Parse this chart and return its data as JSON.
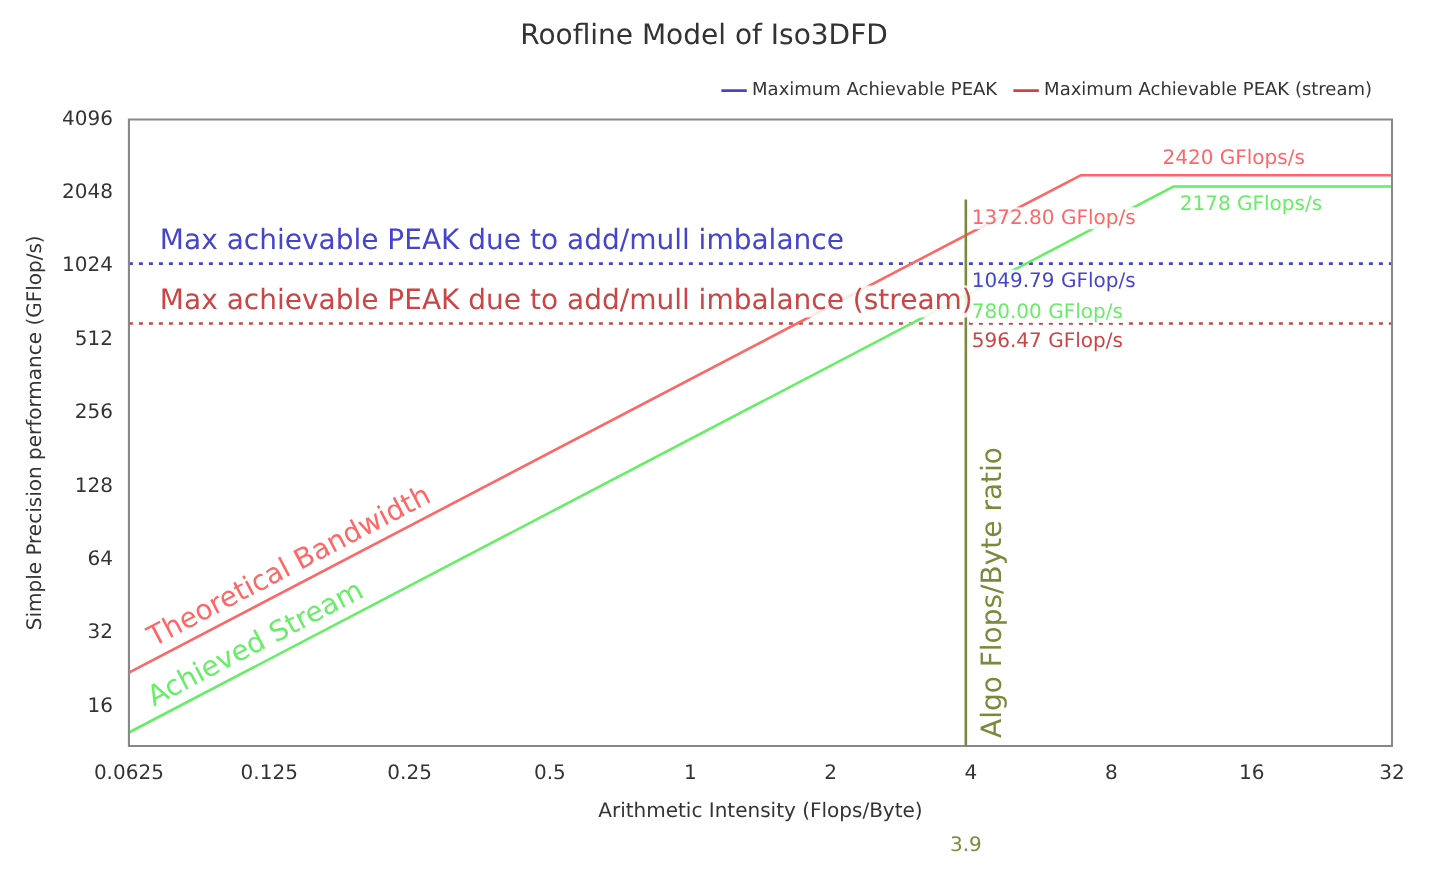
{
  "chart_data": {
    "type": "line",
    "title": "Roofline Model of Iso3DFD",
    "xlabel": "Arithmetic Intensity (Flops/Byte)",
    "ylabel": "Simple Precision performance (GFlop/s)",
    "series": [
      {
        "name": "Theoretical Bandwidth",
        "color": "#ff6666",
        "x": [
          0.0625,
          6.875,
          32
        ],
        "values": [
          22,
          2420,
          2420
        ]
      },
      {
        "name": "Achieved Stream",
        "color": "#66ee66",
        "x": [
          0.0625,
          10.89,
          32
        ],
        "values": [
          12.5,
          2178,
          2178
        ]
      },
      {
        "name": "Maximum Achievable PEAK",
        "color": "#4444cc",
        "x": [
          0.0625,
          32
        ],
        "values": [
          1049.79,
          1049.79
        ],
        "line_style": "dotted"
      },
      {
        "name": "Maximum Achievable PEAK (stream)",
        "color": "#cc4444",
        "x": [
          0.0625,
          32
        ],
        "values": [
          596.47,
          596.47
        ],
        "line_style": "dotted"
      }
    ],
    "ref_lines": [
      {
        "axis": "x",
        "value": 3.9,
        "label": "Algo Flops/Byte ratio",
        "color": "#7a8a3a"
      }
    ],
    "annotations": [
      {
        "text": "Max achievable PEAK due to add/mull imbalance",
        "x": 0.07,
        "y": 1049.79
      },
      {
        "text": "Max achievable PEAK due to add/mull imbalance (stream)",
        "x": 0.07,
        "y": 596.47
      },
      {
        "text": "1372.80 GFlop/s",
        "x": 3.9,
        "y": 1372.8
      },
      {
        "text": "1049.79 GFlop/s",
        "x": 3.9,
        "y": 1049.79
      },
      {
        "text": "780.00 GFlop/s",
        "x": 3.9,
        "y": 780
      },
      {
        "text": "596.47 GFlop/s",
        "x": 3.9,
        "y": 596.47
      },
      {
        "text": "2420 GFlops/s",
        "x": 10,
        "y": 2420
      },
      {
        "text": "2178 GFlops/s",
        "x": 10.89,
        "y": 2178
      },
      "3.9"
    ],
    "log": "xy",
    "xlim": [
      0.0625,
      32
    ],
    "xticks": [
      0.0625,
      0.125,
      0.25,
      0.5,
      1,
      2,
      4,
      8,
      16,
      32
    ],
    "ylim": [
      11,
      4096
    ],
    "yticks": [
      16,
      32,
      64,
      128,
      256,
      512,
      1024,
      2048,
      4096
    ],
    "grid": false,
    "legend": "top right",
    "marker": "none"
  }
}
